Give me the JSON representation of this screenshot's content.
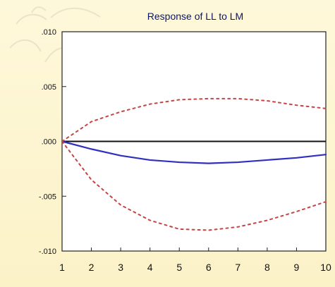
{
  "chart_data": {
    "type": "line",
    "title": "Response of LL to LM",
    "xlabel": "",
    "ylabel": "",
    "x": [
      1,
      2,
      3,
      4,
      5,
      6,
      7,
      8,
      9,
      10
    ],
    "xlim": [
      1,
      10
    ],
    "ylim": [
      -0.01,
      0.01
    ],
    "x_ticks": [
      1,
      2,
      3,
      4,
      5,
      6,
      7,
      8,
      9,
      10
    ],
    "y_ticks": [
      0.01,
      0.005,
      0.0,
      -0.005,
      -0.01
    ],
    "y_tick_labels": [
      ".010",
      ".005",
      ".000",
      "-.005",
      "-.010"
    ],
    "series": [
      {
        "values": [
          0.0,
          -0.0007,
          -0.0013,
          -0.0017,
          -0.0019,
          -0.002,
          -0.0019,
          -0.0017,
          -0.0015,
          -0.0012
        ],
        "style": "solid",
        "color": "#2f2fc0"
      },
      {
        "values": [
          0.0,
          0.0018,
          0.0027,
          0.0034,
          0.0038,
          0.0039,
          0.0039,
          0.0037,
          0.0033,
          0.003
        ],
        "style": "dashed",
        "color": "#c64444"
      },
      {
        "values": [
          0.0,
          -0.0035,
          -0.0058,
          -0.0072,
          -0.008,
          -0.0081,
          -0.0078,
          -0.0072,
          -0.0064,
          -0.0055
        ],
        "style": "dashed",
        "color": "#c64444"
      }
    ],
    "zero_line": true,
    "grid": false,
    "legend": "none"
  }
}
